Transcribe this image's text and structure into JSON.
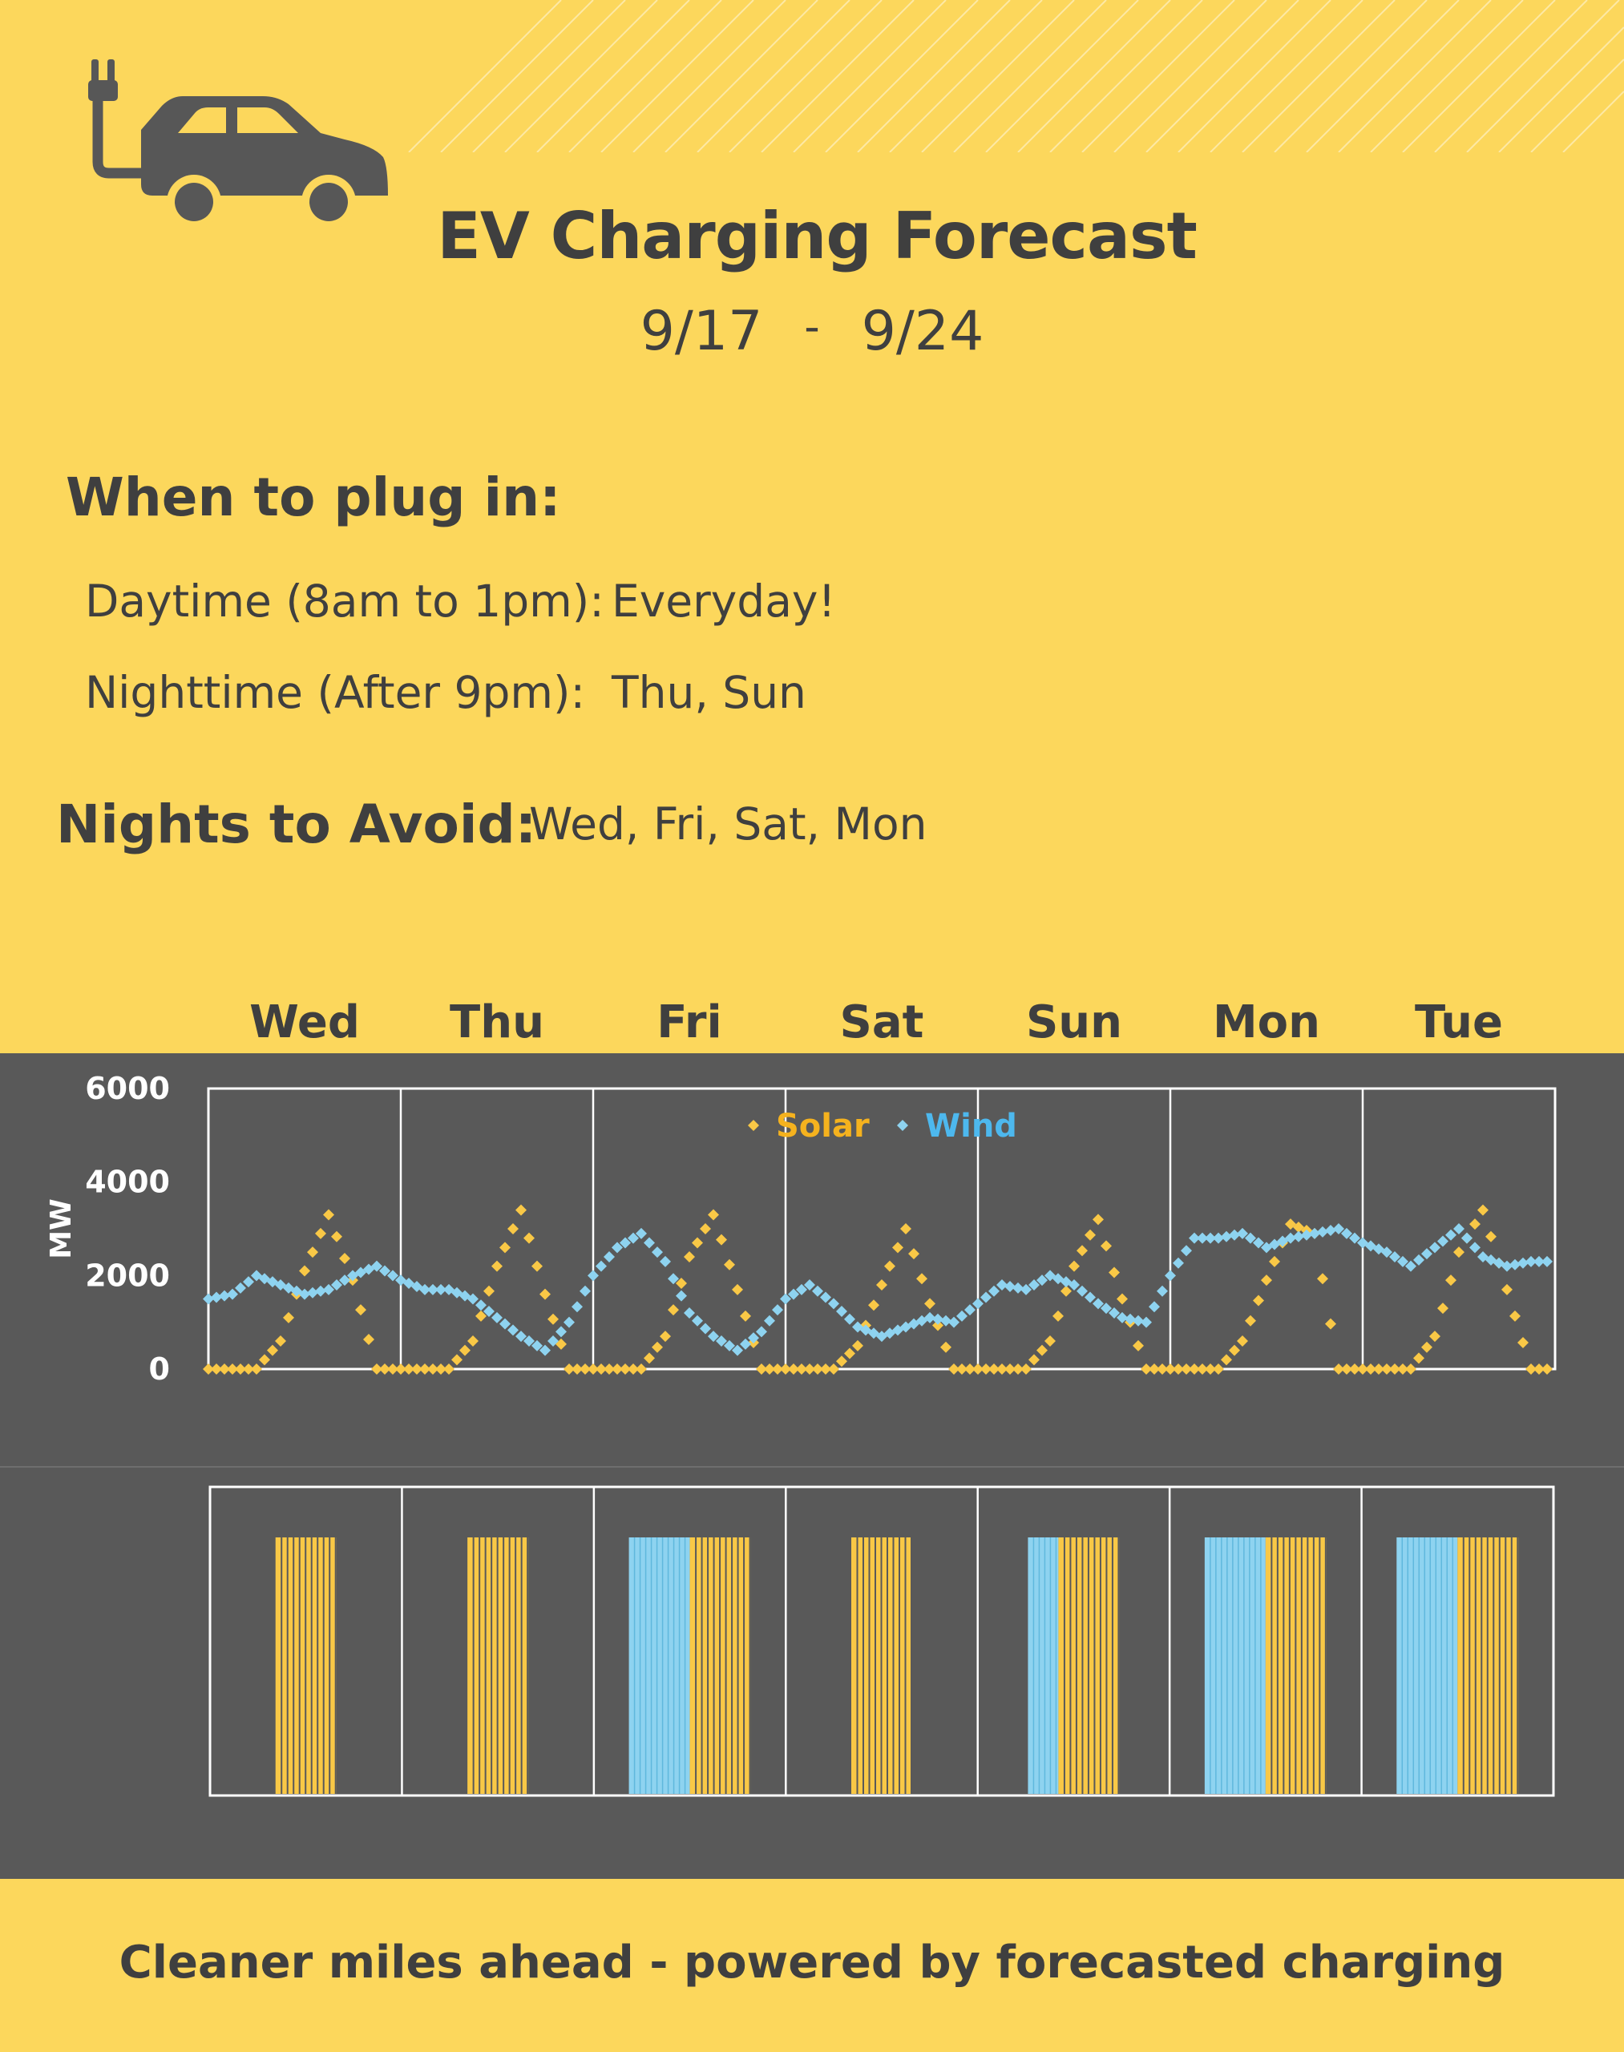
{
  "header": {
    "title": "EV Charging Forecast",
    "date_start": "9/17",
    "date_separator": "-",
    "date_end": "9/24",
    "logo_icon": "ev-car-plug-icon"
  },
  "plug_in": {
    "heading": "When to plug in:",
    "daytime_label": "Daytime (8am to 1pm):",
    "daytime_value": "Everyday!",
    "nighttime_label": "Nighttime  (After 9pm):",
    "nighttime_value": "Thu, Sun"
  },
  "avoid": {
    "heading": "Nights to Avoid:",
    "value": "Wed, Fri, Sat, Mon"
  },
  "footer": {
    "tagline": "Cleaner miles ahead - powered by forecasted charging"
  },
  "colors": {
    "background": "#FCD75C",
    "chart_background": "#595959",
    "solar": "#F9C846",
    "wind": "#8ED3F0",
    "wind_legend_text": "#4DB8EE",
    "solar_legend_text": "#F5B21E",
    "text": "#3F3F3F"
  },
  "chart_data": [
    {
      "type": "scatter",
      "title": "",
      "xlabel": "",
      "ylabel": "MW",
      "ylim": [
        0,
        6000
      ],
      "yticks": [
        0,
        2000,
        4000,
        6000
      ],
      "categories": [
        "Wed",
        "Thu",
        "Fri",
        "Sat",
        "Sun",
        "Mon",
        "Tue"
      ],
      "x_unit": "day (3-hourly samples, 8 per day)",
      "grid": "vertical lines between days",
      "legend": "top-center",
      "series": [
        {
          "name": "Solar",
          "values": [
            0,
            0,
            0,
            600,
            2100,
            3300,
            1900,
            0,
            0,
            0,
            0,
            600,
            2200,
            3400,
            1600,
            0,
            0,
            0,
            0,
            700,
            2400,
            3300,
            1700,
            0,
            0,
            0,
            0,
            500,
            1800,
            3000,
            1400,
            0,
            0,
            0,
            0,
            600,
            2200,
            3200,
            1500,
            0,
            0,
            0,
            0,
            600,
            1900,
            3100,
            2900,
            0,
            0,
            0,
            0,
            700,
            2500,
            3400,
            1700,
            0
          ]
        },
        {
          "name": "Wind",
          "values": [
            1500,
            1600,
            2000,
            1800,
            1600,
            1700,
            2000,
            2200,
            1900,
            1700,
            1700,
            1500,
            1100,
            700,
            400,
            1000,
            2000,
            2600,
            2900,
            2300,
            1200,
            700,
            400,
            800,
            1500,
            1800,
            1400,
            900,
            700,
            900,
            1100,
            1000,
            1400,
            1800,
            1700,
            2000,
            1800,
            1400,
            1100,
            1000,
            2000,
            2800,
            2800,
            2900,
            2600,
            2800,
            2900,
            3000,
            2700,
            2500,
            2200,
            2600,
            3000,
            2400,
            2200,
            2300
          ]
        }
      ]
    },
    {
      "type": "bar",
      "title": "",
      "categories": [
        "Wed",
        "Thu",
        "Fri",
        "Sat",
        "Sun",
        "Mon",
        "Tue"
      ],
      "values_unit": "recommended charging hours (8am to 1pm window)",
      "series": [
        {
          "name": "Wind",
          "values": [
            0,
            0,
            2,
            0,
            1,
            2,
            2
          ]
        },
        {
          "name": "Solar",
          "values": [
            2,
            2,
            2,
            2,
            2,
            2,
            2
          ]
        }
      ]
    }
  ]
}
